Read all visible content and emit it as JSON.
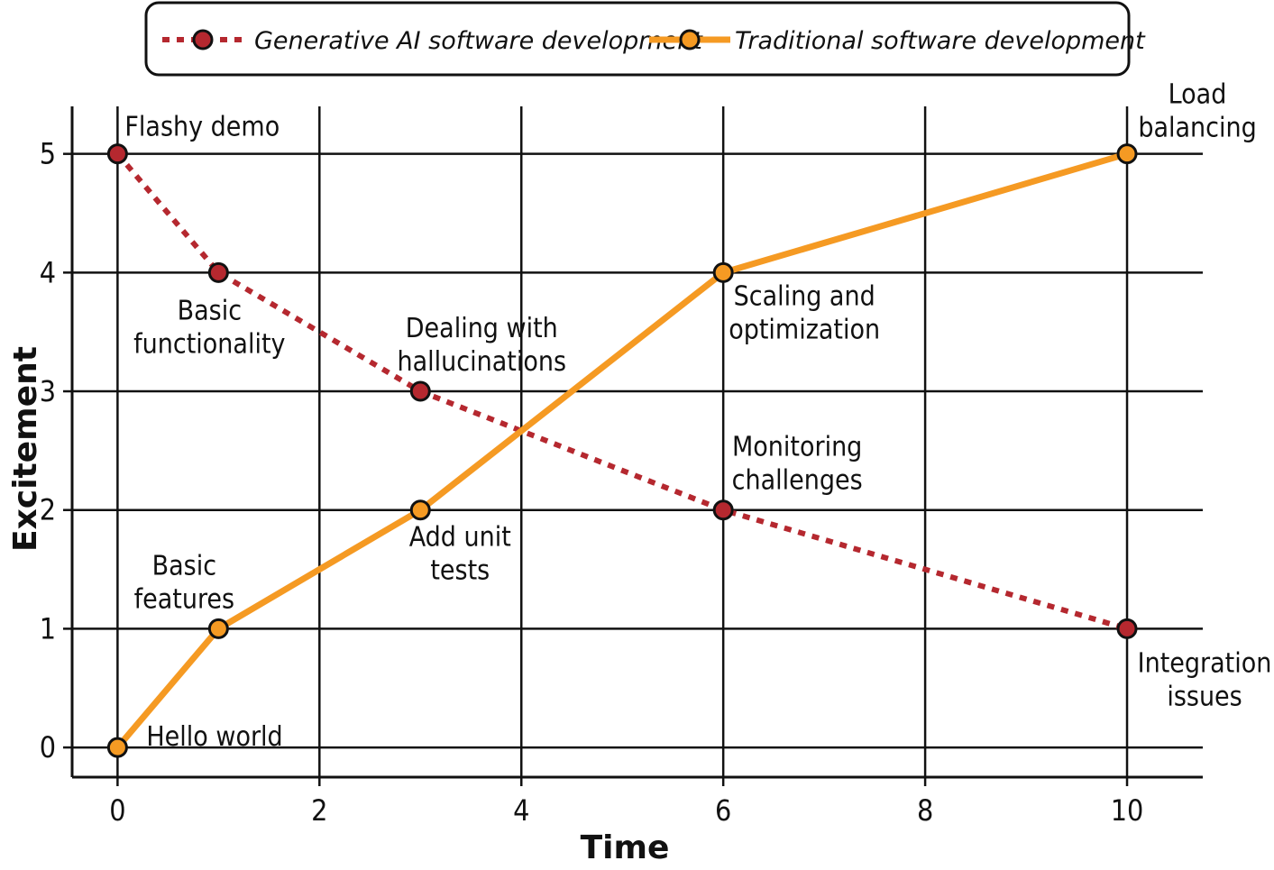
{
  "chart_data": {
    "type": "line",
    "xlabel": "Time",
    "ylabel": "Excitement",
    "xlim": [
      -0.45,
      10.75
    ],
    "ylim": [
      -0.25,
      5.4
    ],
    "xticks": [
      0,
      2,
      4,
      6,
      8,
      10
    ],
    "yticks": [
      0,
      1,
      2,
      3,
      4,
      5
    ],
    "grid": true,
    "legend": "top",
    "series": [
      {
        "name": "Generative AI software development",
        "style": "dotted",
        "color": "#b5282f",
        "points": [
          [
            0,
            5
          ],
          [
            1,
            4
          ],
          [
            3,
            3
          ],
          [
            6,
            2
          ],
          [
            10,
            1
          ]
        ]
      },
      {
        "name": "Traditional software development",
        "style": "solid",
        "color": "#f59a23",
        "points": [
          [
            0,
            0
          ],
          [
            1,
            1
          ],
          [
            3,
            2
          ],
          [
            6,
            4
          ],
          [
            10,
            5
          ]
        ]
      }
    ],
    "annotations": [
      {
        "x": 0,
        "y": 5,
        "lines": [
          "Flashy demo"
        ]
      },
      {
        "x": 1,
        "y": 4,
        "lines": [
          "Basic",
          "functionality"
        ]
      },
      {
        "x": 3,
        "y": 3,
        "lines": [
          "Dealing with",
          "hallucinations"
        ]
      },
      {
        "x": 6,
        "y": 2,
        "lines": [
          "Monitoring",
          "challenges"
        ]
      },
      {
        "x": 10,
        "y": 1,
        "lines": [
          "Integration",
          "issues"
        ]
      },
      {
        "x": 0,
        "y": 0,
        "lines": [
          "Hello world"
        ]
      },
      {
        "x": 1,
        "y": 1,
        "lines": [
          "Basic",
          "features"
        ]
      },
      {
        "x": 3,
        "y": 2,
        "lines": [
          "Add unit",
          "tests"
        ]
      },
      {
        "x": 6,
        "y": 4,
        "lines": [
          "Scaling and",
          "optimization"
        ]
      },
      {
        "x": 10,
        "y": 5,
        "lines": [
          "Load",
          "balancing"
        ]
      }
    ]
  }
}
